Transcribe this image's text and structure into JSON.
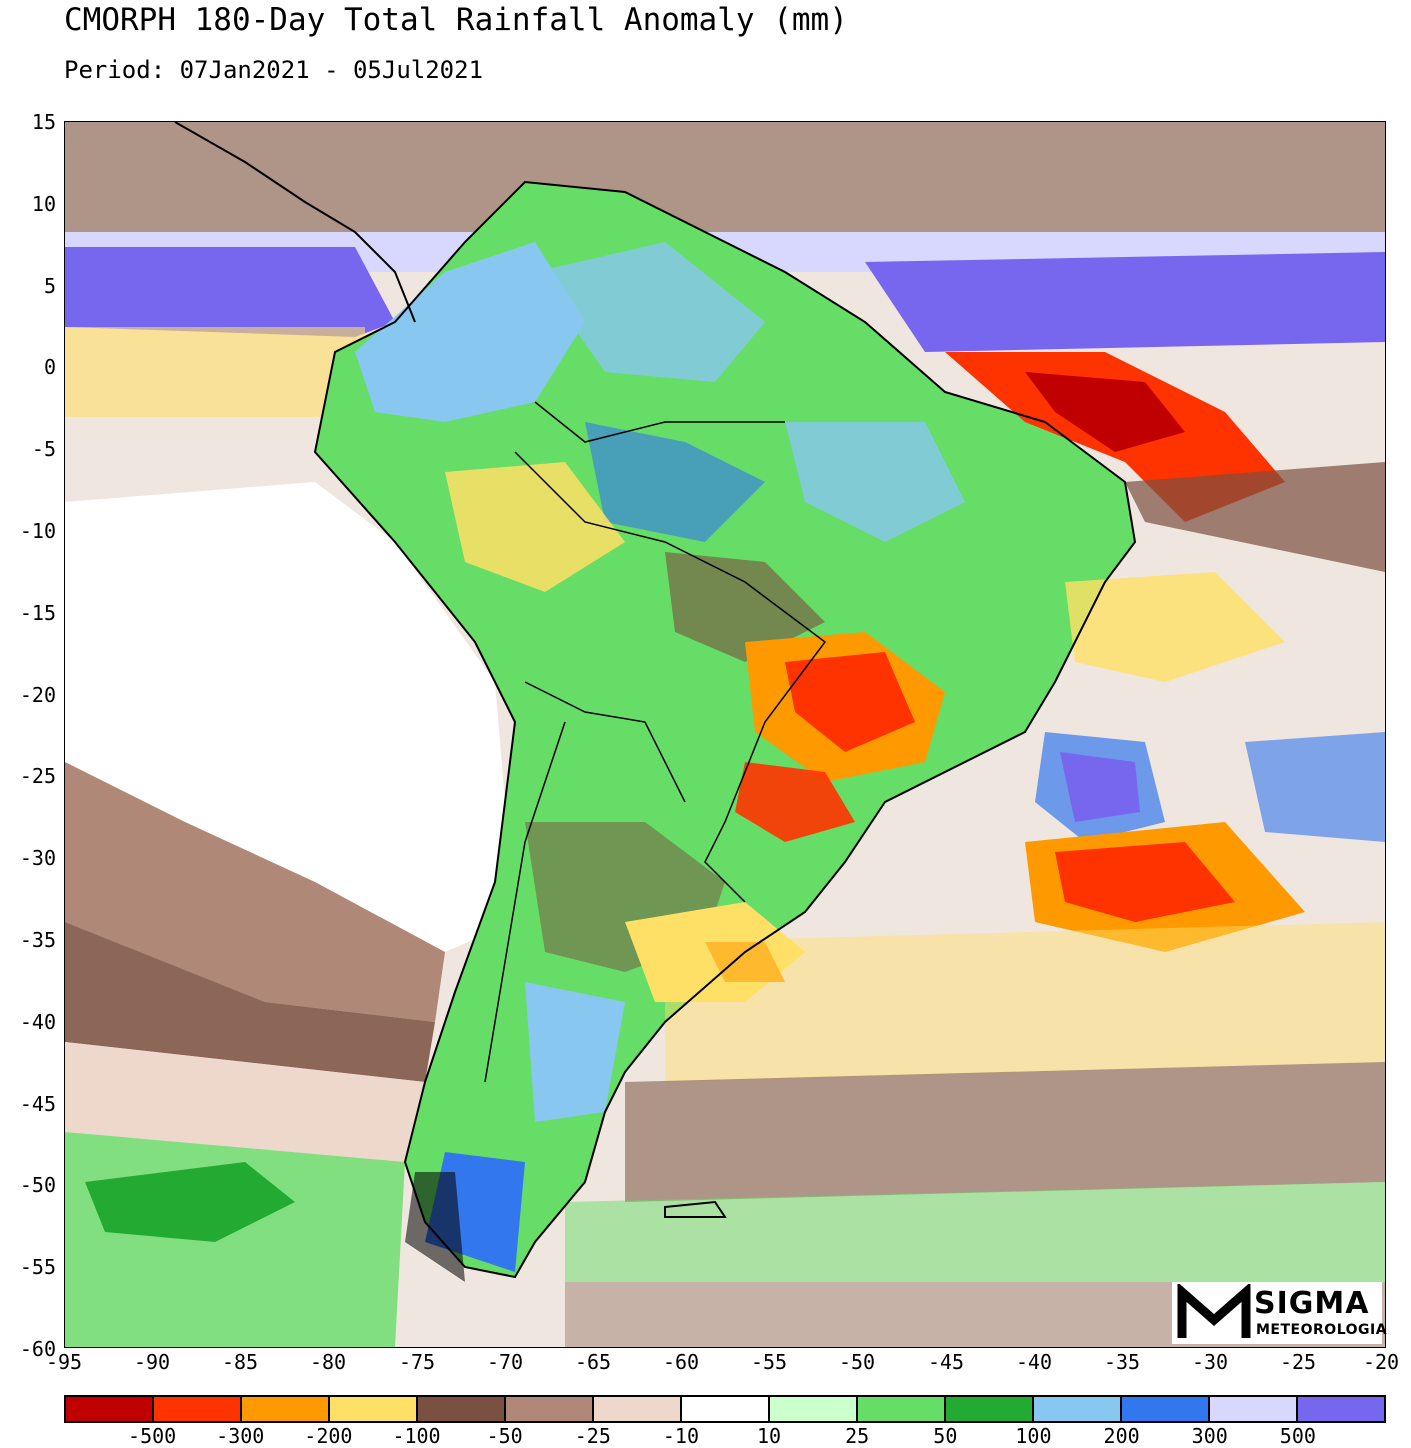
{
  "header": {
    "title": "CMORPH 180-Day Total Rainfall Anomaly (mm)",
    "period": "Period: 07Jan2021 - 05Jul2021"
  },
  "axes": {
    "lat_labels": [
      "15",
      "10",
      "5",
      "0",
      "-5",
      "-10",
      "-15",
      "-20",
      "-25",
      "-30",
      "-35",
      "-40",
      "-45",
      "-50",
      "-55",
      "-60"
    ],
    "lon_labels": [
      "-95",
      "-90",
      "-85",
      "-80",
      "-75",
      "-70",
      "-65",
      "-60",
      "-55",
      "-50",
      "-45",
      "-40",
      "-35",
      "-30",
      "-25",
      "-20"
    ]
  },
  "legend": {
    "colors": [
      "#c00000",
      "#ff3300",
      "#ff9900",
      "#ffe066",
      "#7a5040",
      "#b08878",
      "#eed8cc",
      "#ffffff",
      "#ccffcc",
      "#66dd66",
      "#22aa33",
      "#88c8f0",
      "#3377ee",
      "#d8d8ff",
      "#7766ee"
    ],
    "labels": [
      "-500",
      "-300",
      "-200",
      "-100",
      "-50",
      "-25",
      "-10",
      "10",
      "25",
      "50",
      "100",
      "200",
      "300",
      "500"
    ]
  },
  "logo": {
    "name": "SIGMA",
    "sub": "METEOROLOGIA"
  }
}
